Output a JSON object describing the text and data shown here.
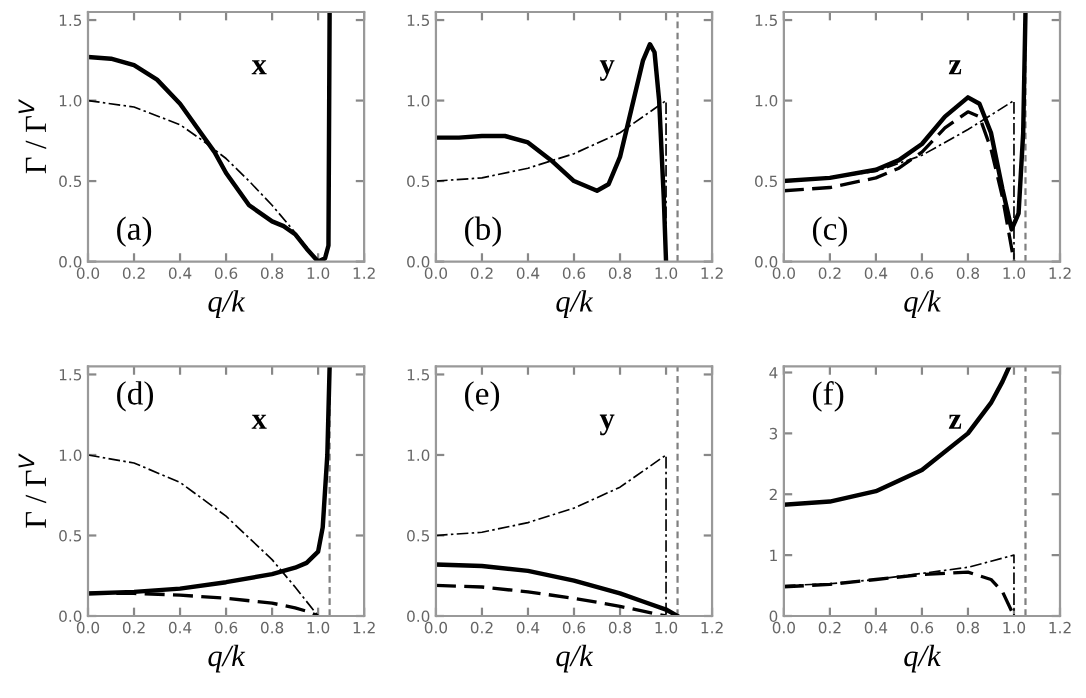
{
  "chart_data": [
    {
      "type": "line",
      "xlabel": "q/k",
      "ylabel": "Γ / Γ$^{V}$",
      "annotations": [
        "(a)",
        "x"
      ],
      "xlim": [
        0,
        1.2
      ],
      "ylim": [
        0,
        1.55
      ],
      "xticks": [
        {
          "value": 0,
          "label": "0.0"
        },
        {
          "value": 0.2,
          "label": "0.2"
        },
        {
          "value": 0.4,
          "label": "0.4"
        },
        {
          "value": 0.6,
          "label": "0.6"
        },
        {
          "value": 0.8,
          "label": "0.8"
        },
        {
          "value": 1.0,
          "label": "1.0"
        },
        {
          "value": 1.2,
          "label": "1.2"
        }
      ],
      "yticks": [
        {
          "value": 0,
          "label": "0.0"
        },
        {
          "value": 0.5,
          "label": "0.5"
        },
        {
          "value": 1.0,
          "label": "1.0"
        },
        {
          "value": 1.5,
          "label": "1.5"
        }
      ],
      "series": [
        {
          "color": "#000000",
          "line_style": "solid",
          "x": [
            0,
            0.1,
            0.2,
            0.3,
            0.4,
            0.5,
            0.55,
            0.6,
            0.7,
            0.8,
            0.85,
            0.9,
            0.95,
            1.0,
            1.03,
            1.045,
            1.05
          ],
          "values": [
            1.27,
            1.26,
            1.22,
            1.13,
            0.98,
            0.78,
            0.68,
            0.55,
            0.35,
            0.25,
            0.22,
            0.17,
            0.08,
            0.0,
            0.02,
            0.1,
            1.55
          ]
        },
        {
          "color": "#000000",
          "line_style": "dashdot",
          "x": [
            0,
            0.2,
            0.4,
            0.5,
            0.6,
            0.7,
            0.8,
            0.9,
            1.0
          ],
          "values": [
            1.0,
            0.96,
            0.85,
            0.75,
            0.64,
            0.5,
            0.35,
            0.18,
            0.0
          ]
        }
      ]
    },
    {
      "type": "line",
      "xlabel": "q/k",
      "annotations": [
        "(b)",
        "y"
      ],
      "xlim": [
        0,
        1.2
      ],
      "ylim": [
        0,
        1.55
      ],
      "xticks": [
        {
          "value": 0,
          "label": "0.0"
        },
        {
          "value": 0.2,
          "label": "0.2"
        },
        {
          "value": 0.4,
          "label": "0.4"
        },
        {
          "value": 0.6,
          "label": "0.6"
        },
        {
          "value": 0.8,
          "label": "0.8"
        },
        {
          "value": 1.0,
          "label": "1.0"
        },
        {
          "value": 1.2,
          "label": "1.2"
        }
      ],
      "yticks": [
        {
          "value": 0,
          "label": "0.0"
        },
        {
          "value": 0.5,
          "label": "0.5"
        },
        {
          "value": 1.0,
          "label": "1.0"
        },
        {
          "value": 1.5,
          "label": "1.5"
        }
      ],
      "ref_lines": [
        {
          "axis": "x",
          "value": 1.05,
          "color": "#808080",
          "line_style": "dashed"
        }
      ],
      "series": [
        {
          "color": "#000000",
          "line_style": "solid",
          "x": [
            0,
            0.1,
            0.2,
            0.3,
            0.4,
            0.5,
            0.6,
            0.7,
            0.75,
            0.8,
            0.85,
            0.9,
            0.93,
            0.95,
            0.97,
            0.99,
            1.0
          ],
          "values": [
            0.77,
            0.77,
            0.78,
            0.78,
            0.74,
            0.63,
            0.5,
            0.44,
            0.48,
            0.65,
            0.95,
            1.25,
            1.35,
            1.3,
            1.0,
            0.4,
            0.0
          ]
        },
        {
          "color": "#000000",
          "line_style": "dashdot",
          "x": [
            0,
            0.2,
            0.4,
            0.6,
            0.8,
            0.9,
            1.0,
            1.0
          ],
          "values": [
            0.5,
            0.52,
            0.58,
            0.67,
            0.8,
            0.9,
            1.0,
            0.0
          ]
        }
      ]
    },
    {
      "type": "line",
      "xlabel": "q/k",
      "annotations": [
        "(c)",
        "z"
      ],
      "xlim": [
        0,
        1.2
      ],
      "ylim": [
        0,
        1.55
      ],
      "xticks": [
        {
          "value": 0,
          "label": "0.0"
        },
        {
          "value": 0.2,
          "label": "0.2"
        },
        {
          "value": 0.4,
          "label": "0.4"
        },
        {
          "value": 0.6,
          "label": "0.6"
        },
        {
          "value": 0.8,
          "label": "0.8"
        },
        {
          "value": 1.0,
          "label": "1.0"
        },
        {
          "value": 1.2,
          "label": "1.2"
        }
      ],
      "yticks": [
        {
          "value": 0,
          "label": "0.0"
        },
        {
          "value": 0.5,
          "label": "0.5"
        },
        {
          "value": 1.0,
          "label": "1.0"
        },
        {
          "value": 1.5,
          "label": "1.5"
        }
      ],
      "ref_lines": [
        {
          "axis": "x",
          "value": 1.05,
          "color": "#808080",
          "line_style": "dashed"
        }
      ],
      "series": [
        {
          "color": "#000000",
          "line_style": "solid",
          "x": [
            0,
            0.2,
            0.4,
            0.5,
            0.6,
            0.7,
            0.8,
            0.85,
            0.9,
            0.95,
            0.99,
            1.02,
            1.04,
            1.05
          ],
          "values": [
            0.5,
            0.52,
            0.57,
            0.63,
            0.73,
            0.9,
            1.02,
            0.98,
            0.8,
            0.45,
            0.2,
            0.3,
            0.8,
            1.55
          ]
        },
        {
          "color": "#000000",
          "line_style": "dashed",
          "x": [
            0,
            0.2,
            0.4,
            0.5,
            0.6,
            0.7,
            0.8,
            0.85,
            0.9,
            0.95,
            1.0
          ],
          "values": [
            0.44,
            0.46,
            0.52,
            0.58,
            0.68,
            0.83,
            0.93,
            0.9,
            0.7,
            0.4,
            0.0
          ]
        },
        {
          "color": "#000000",
          "line_style": "dashdot",
          "x": [
            0,
            0.2,
            0.4,
            0.6,
            0.8,
            1.0,
            1.0
          ],
          "values": [
            0.5,
            0.52,
            0.56,
            0.66,
            0.82,
            1.0,
            0.0
          ]
        }
      ]
    },
    {
      "type": "line",
      "xlabel": "q/k",
      "ylabel": "Γ / Γ$^{V}$",
      "annotations": [
        "(d)",
        "x"
      ],
      "xlim": [
        0,
        1.2
      ],
      "ylim": [
        0,
        1.55
      ],
      "xticks": [
        {
          "value": 0,
          "label": "0.0"
        },
        {
          "value": 0.2,
          "label": "0.2"
        },
        {
          "value": 0.4,
          "label": "0.4"
        },
        {
          "value": 0.6,
          "label": "0.6"
        },
        {
          "value": 0.8,
          "label": "0.8"
        },
        {
          "value": 1.0,
          "label": "1.0"
        },
        {
          "value": 1.2,
          "label": "1.2"
        }
      ],
      "yticks": [
        {
          "value": 0,
          "label": "0.0"
        },
        {
          "value": 0.5,
          "label": "0.5"
        },
        {
          "value": 1.0,
          "label": "1.0"
        },
        {
          "value": 1.5,
          "label": "1.5"
        }
      ],
      "ref_lines": [
        {
          "axis": "x",
          "value": 1.05,
          "color": "#808080",
          "line_style": "dashed"
        }
      ],
      "series": [
        {
          "color": "#000000",
          "line_style": "solid",
          "x": [
            0,
            0.2,
            0.4,
            0.6,
            0.8,
            0.9,
            0.95,
            1.0,
            1.02,
            1.04,
            1.05
          ],
          "values": [
            0.14,
            0.15,
            0.17,
            0.21,
            0.26,
            0.3,
            0.33,
            0.4,
            0.55,
            1.0,
            1.55
          ]
        },
        {
          "color": "#000000",
          "line_style": "dashed",
          "x": [
            0,
            0.2,
            0.4,
            0.6,
            0.8,
            0.9,
            0.95,
            1.0
          ],
          "values": [
            0.14,
            0.14,
            0.13,
            0.11,
            0.08,
            0.05,
            0.03,
            0.0
          ]
        },
        {
          "color": "#000000",
          "line_style": "dashdot",
          "x": [
            0,
            0.2,
            0.4,
            0.6,
            0.8,
            0.9,
            1.0
          ],
          "values": [
            1.0,
            0.95,
            0.83,
            0.62,
            0.35,
            0.18,
            0.0
          ]
        }
      ]
    },
    {
      "type": "line",
      "xlabel": "q/k",
      "annotations": [
        "(e)",
        "y"
      ],
      "xlim": [
        0,
        1.2
      ],
      "ylim": [
        0,
        1.55
      ],
      "xticks": [
        {
          "value": 0,
          "label": "0.0"
        },
        {
          "value": 0.2,
          "label": "0.2"
        },
        {
          "value": 0.4,
          "label": "0.4"
        },
        {
          "value": 0.6,
          "label": "0.6"
        },
        {
          "value": 0.8,
          "label": "0.8"
        },
        {
          "value": 1.0,
          "label": "1.0"
        },
        {
          "value": 1.2,
          "label": "1.2"
        }
      ],
      "yticks": [
        {
          "value": 0,
          "label": "0.0"
        },
        {
          "value": 0.5,
          "label": "0.5"
        },
        {
          "value": 1.0,
          "label": "1.0"
        },
        {
          "value": 1.5,
          "label": "1.5"
        }
      ],
      "ref_lines": [
        {
          "axis": "x",
          "value": 1.05,
          "color": "#808080",
          "line_style": "dashed"
        }
      ],
      "series": [
        {
          "color": "#000000",
          "line_style": "solid",
          "x": [
            0,
            0.2,
            0.4,
            0.6,
            0.8,
            0.9,
            1.0,
            1.05
          ],
          "values": [
            0.32,
            0.31,
            0.28,
            0.22,
            0.14,
            0.09,
            0.04,
            0.0
          ]
        },
        {
          "color": "#000000",
          "line_style": "dashed",
          "x": [
            0,
            0.2,
            0.4,
            0.6,
            0.8,
            0.9,
            1.0
          ],
          "values": [
            0.19,
            0.18,
            0.15,
            0.11,
            0.06,
            0.03,
            0.0
          ]
        },
        {
          "color": "#000000",
          "line_style": "dashdot",
          "x": [
            0,
            0.2,
            0.4,
            0.6,
            0.8,
            0.9,
            1.0,
            1.0
          ],
          "values": [
            0.5,
            0.52,
            0.58,
            0.67,
            0.8,
            0.9,
            1.0,
            0.0
          ]
        }
      ]
    },
    {
      "type": "line",
      "xlabel": "q/k",
      "annotations": [
        "(f)",
        "z"
      ],
      "xlim": [
        0,
        1.2
      ],
      "ylim": [
        0,
        4.1
      ],
      "xticks": [
        {
          "value": 0,
          "label": "0.0"
        },
        {
          "value": 0.2,
          "label": "0.2"
        },
        {
          "value": 0.4,
          "label": "0.4"
        },
        {
          "value": 0.6,
          "label": "0.6"
        },
        {
          "value": 0.8,
          "label": "0.8"
        },
        {
          "value": 1.0,
          "label": "1.0"
        },
        {
          "value": 1.2,
          "label": "1.2"
        }
      ],
      "yticks": [
        0,
        1,
        2,
        3,
        4
      ],
      "ref_lines": [
        {
          "axis": "x",
          "value": 1.05,
          "color": "#808080",
          "line_style": "dashed"
        }
      ],
      "series": [
        {
          "color": "#000000",
          "line_style": "solid",
          "x": [
            0,
            0.2,
            0.4,
            0.6,
            0.8,
            0.9,
            0.95,
            0.98
          ],
          "values": [
            1.83,
            1.88,
            2.05,
            2.4,
            3.0,
            3.5,
            3.85,
            4.1
          ]
        },
        {
          "color": "#000000",
          "line_style": "dashed",
          "x": [
            0,
            0.2,
            0.4,
            0.6,
            0.8,
            0.9,
            0.95,
            1.0
          ],
          "values": [
            0.48,
            0.52,
            0.6,
            0.68,
            0.72,
            0.6,
            0.4,
            0.0
          ]
        },
        {
          "color": "#000000",
          "line_style": "dashdot",
          "x": [
            0,
            0.2,
            0.4,
            0.6,
            0.8,
            0.9,
            1.0,
            1.0
          ],
          "values": [
            0.5,
            0.53,
            0.6,
            0.7,
            0.8,
            0.9,
            1.0,
            0.0
          ]
        }
      ]
    }
  ]
}
